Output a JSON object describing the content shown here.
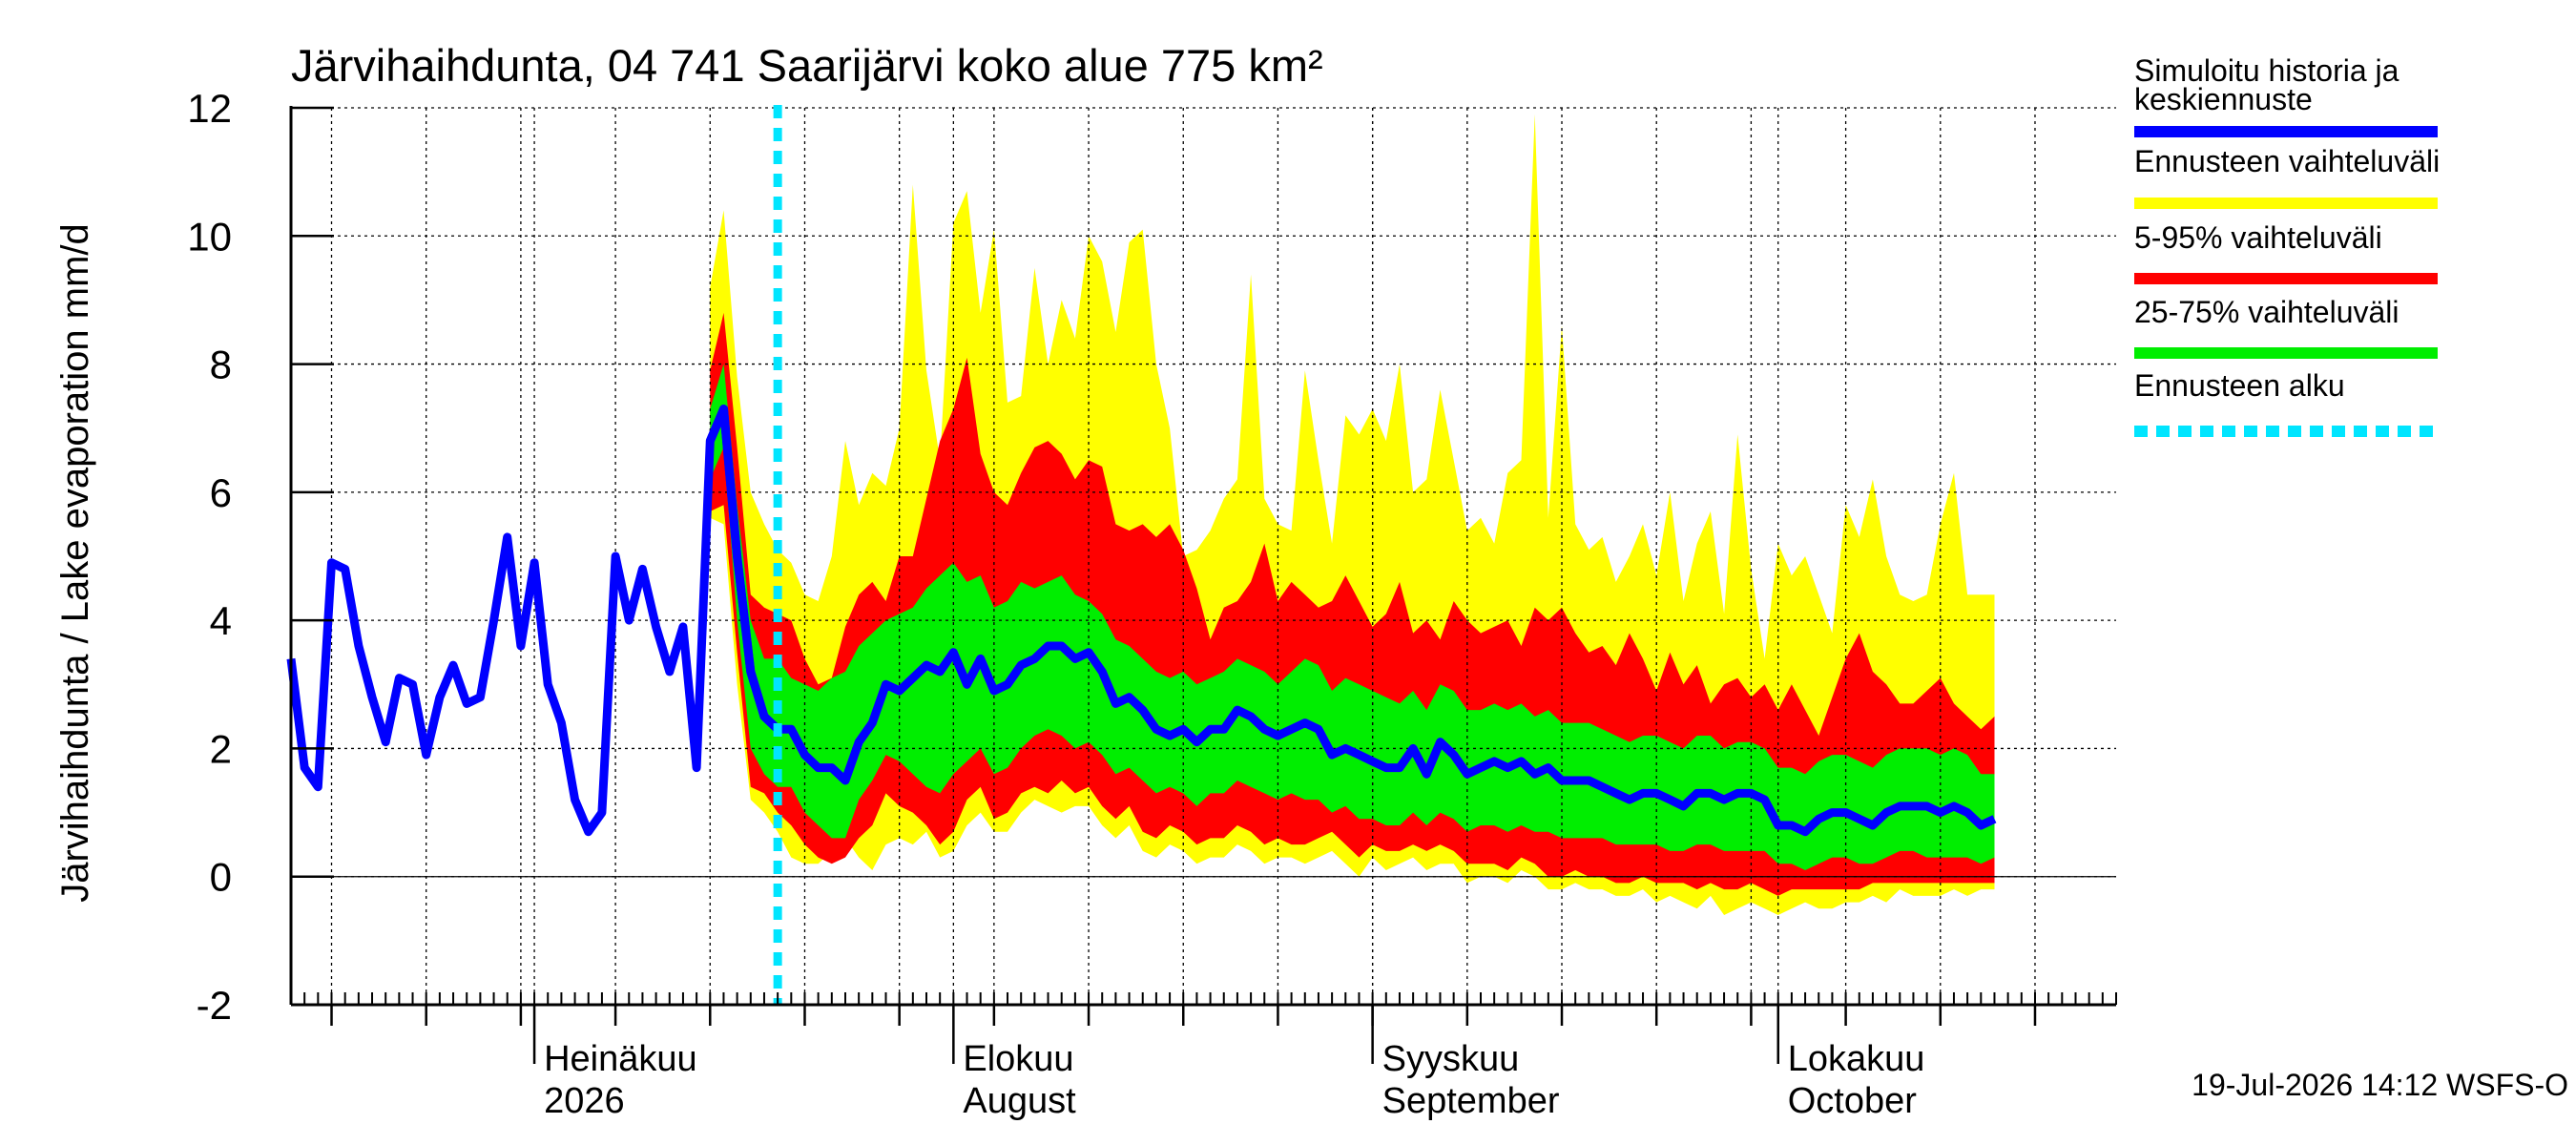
{
  "chart_data": {
    "type": "area",
    "title": "Järvihaihdunta, 04 741 Saarijärvi koko alue 775 km²",
    "ylabel": "Järvihaihdunta / Lake evaporation   mm/d",
    "ylim": [
      -2,
      12
    ],
    "yticks": [
      "-2",
      "0",
      "2",
      "4",
      "6",
      "8",
      "10",
      "12"
    ],
    "xlim": [
      "2026-06-13",
      "2026-10-26"
    ],
    "month_labels": [
      {
        "date": "2026-07-01",
        "line1": "Heinäkuu",
        "line2": "2026"
      },
      {
        "date": "2026-08-01",
        "line1": "Elokuu",
        "line2": "August"
      },
      {
        "date": "2026-09-01",
        "line1": "Syyskuu",
        "line2": "September"
      },
      {
        "date": "2026-10-01",
        "line1": "Lokakuu",
        "line2": "October"
      }
    ],
    "grid": true,
    "forecast_start": "2026-07-19",
    "legend": [
      {
        "label": "Simuloitu historia ja keskiennuste",
        "color": "#0000ff",
        "style": "solid"
      },
      {
        "label": "Ennusteen vaihteluväli",
        "color": "#ffff00",
        "style": "solid"
      },
      {
        "label": "5-95% vaihteluväli",
        "color": "#ff0000",
        "style": "solid"
      },
      {
        "label": "25-75% vaihteluväli",
        "color": "#00ee00",
        "style": "solid"
      },
      {
        "label": "Ennusteen alku",
        "color": "#00e5ff",
        "style": "dashed"
      }
    ],
    "footer": "19-Jul-2026 14:12 WSFS-O",
    "history": [
      [
        "2026-06-13",
        3.4
      ],
      [
        "2026-06-14",
        1.7
      ],
      [
        "2026-06-15",
        1.4
      ],
      [
        "2026-06-16",
        4.9
      ],
      [
        "2026-06-17",
        4.8
      ],
      [
        "2026-06-18",
        3.6
      ],
      [
        "2026-06-19",
        2.8
      ],
      [
        "2026-06-20",
        2.1
      ],
      [
        "2026-06-21",
        3.1
      ],
      [
        "2026-06-22",
        3.0
      ],
      [
        "2026-06-23",
        1.9
      ],
      [
        "2026-06-24",
        2.8
      ],
      [
        "2026-06-25",
        3.3
      ],
      [
        "2026-06-26",
        2.7
      ],
      [
        "2026-06-27",
        2.8
      ],
      [
        "2026-06-28",
        4.0
      ],
      [
        "2026-06-29",
        5.3
      ],
      [
        "2026-06-30",
        3.6
      ],
      [
        "2026-07-01",
        4.9
      ],
      [
        "2026-07-02",
        3.0
      ],
      [
        "2026-07-03",
        2.4
      ],
      [
        "2026-07-04",
        1.2
      ],
      [
        "2026-07-05",
        0.7
      ],
      [
        "2026-07-06",
        1.0
      ],
      [
        "2026-07-07",
        5.0
      ],
      [
        "2026-07-08",
        4.0
      ],
      [
        "2026-07-09",
        4.8
      ],
      [
        "2026-07-10",
        3.9
      ],
      [
        "2026-07-11",
        3.2
      ],
      [
        "2026-07-12",
        3.9
      ],
      [
        "2026-07-13",
        1.7
      ],
      [
        "2026-07-14",
        6.8
      ],
      [
        "2026-07-15",
        7.3
      ],
      [
        "2026-07-16",
        5.0
      ],
      [
        "2026-07-17",
        3.2
      ],
      [
        "2026-07-18",
        2.5
      ],
      [
        "2026-07-19",
        2.3
      ]
    ],
    "forecast": {
      "start": "2026-07-14",
      "median": [
        6.8,
        7.3,
        5.0,
        3.2,
        2.5,
        2.3,
        2.3,
        1.9,
        1.7,
        1.7,
        1.5,
        2.1,
        2.4,
        3.0,
        2.9,
        3.1,
        3.3,
        3.2,
        3.5,
        3.0,
        3.4,
        2.9,
        3.0,
        3.3,
        3.4,
        3.6,
        3.6,
        3.4,
        3.5,
        3.2,
        2.7,
        2.8,
        2.6,
        2.3,
        2.2,
        2.3,
        2.1,
        2.3,
        2.3,
        2.6,
        2.5,
        2.3,
        2.2,
        2.3,
        2.4,
        2.3,
        1.9,
        2.0,
        1.9,
        1.8,
        1.7,
        1.7,
        2.0,
        1.6,
        2.1,
        1.9,
        1.6,
        1.7,
        1.8,
        1.7,
        1.8,
        1.6,
        1.7,
        1.5,
        1.5,
        1.5,
        1.4,
        1.3,
        1.2,
        1.3,
        1.3,
        1.2,
        1.1,
        1.3,
        1.3,
        1.2,
        1.3,
        1.3,
        1.2,
        0.8,
        0.8,
        0.7,
        0.9,
        1.0,
        1.0,
        0.9,
        0.8,
        1.0,
        1.1,
        1.1,
        1.1,
        1.0,
        1.1,
        1.0,
        0.8,
        0.9
      ],
      "min": [
        5.6,
        5.5,
        3.0,
        1.2,
        1.0,
        0.7,
        0.3,
        0.2,
        0.2,
        0.4,
        0.6,
        0.3,
        0.1,
        0.5,
        0.6,
        0.5,
        0.7,
        0.3,
        0.4,
        0.8,
        1.0,
        0.7,
        0.7,
        1.0,
        1.2,
        1.1,
        1.0,
        1.1,
        1.1,
        0.8,
        0.6,
        0.8,
        0.4,
        0.3,
        0.5,
        0.4,
        0.2,
        0.3,
        0.3,
        0.5,
        0.4,
        0.2,
        0.3,
        0.3,
        0.2,
        0.3,
        0.4,
        0.2,
        0.0,
        0.3,
        0.1,
        0.2,
        0.3,
        0.1,
        0.2,
        0.2,
        -0.1,
        0.0,
        0.0,
        -0.1,
        0.1,
        0.0,
        -0.2,
        -0.2,
        -0.1,
        -0.2,
        -0.2,
        -0.3,
        -0.3,
        -0.2,
        -0.4,
        -0.3,
        -0.4,
        -0.5,
        -0.3,
        -0.6,
        -0.5,
        -0.4,
        -0.5,
        -0.6,
        -0.5,
        -0.4,
        -0.5,
        -0.5,
        -0.4,
        -0.4,
        -0.3,
        -0.4,
        -0.2,
        -0.3,
        -0.3,
        -0.3,
        -0.2,
        -0.3,
        -0.2,
        -0.2
      ],
      "q05": [
        5.7,
        5.8,
        3.5,
        1.4,
        1.3,
        1.0,
        0.8,
        0.5,
        0.3,
        0.2,
        0.3,
        0.6,
        0.8,
        1.3,
        1.1,
        1.0,
        0.8,
        0.5,
        0.7,
        1.2,
        1.4,
        0.9,
        1.0,
        1.3,
        1.4,
        1.3,
        1.5,
        1.3,
        1.4,
        1.1,
        0.9,
        1.1,
        0.7,
        0.6,
        0.8,
        0.7,
        0.5,
        0.6,
        0.6,
        0.8,
        0.7,
        0.5,
        0.6,
        0.5,
        0.5,
        0.6,
        0.7,
        0.5,
        0.3,
        0.5,
        0.4,
        0.4,
        0.5,
        0.4,
        0.5,
        0.4,
        0.2,
        0.2,
        0.2,
        0.1,
        0.3,
        0.2,
        0.0,
        0.0,
        0.1,
        0.0,
        0.0,
        -0.1,
        -0.1,
        0.0,
        -0.1,
        -0.1,
        -0.1,
        -0.2,
        -0.1,
        -0.2,
        -0.2,
        -0.1,
        -0.2,
        -0.3,
        -0.2,
        -0.2,
        -0.2,
        -0.2,
        -0.2,
        -0.2,
        -0.1,
        -0.1,
        -0.1,
        -0.1,
        -0.1,
        -0.1,
        -0.1,
        -0.1,
        -0.1,
        -0.1
      ],
      "q25": [
        6.2,
        6.7,
        4.0,
        2.0,
        1.6,
        1.4,
        1.4,
        1.0,
        0.8,
        0.6,
        0.6,
        1.2,
        1.5,
        1.9,
        1.8,
        1.6,
        1.4,
        1.3,
        1.6,
        1.8,
        2.0,
        1.6,
        1.7,
        2.0,
        2.2,
        2.3,
        2.2,
        2.0,
        2.1,
        1.9,
        1.6,
        1.7,
        1.5,
        1.3,
        1.4,
        1.3,
        1.1,
        1.3,
        1.3,
        1.5,
        1.4,
        1.3,
        1.2,
        1.3,
        1.2,
        1.2,
        1.0,
        1.1,
        0.9,
        0.9,
        0.8,
        0.8,
        1.0,
        0.8,
        1.0,
        0.9,
        0.7,
        0.8,
        0.8,
        0.7,
        0.8,
        0.7,
        0.7,
        0.6,
        0.6,
        0.6,
        0.6,
        0.5,
        0.5,
        0.5,
        0.5,
        0.4,
        0.4,
        0.5,
        0.5,
        0.4,
        0.4,
        0.4,
        0.4,
        0.2,
        0.2,
        0.1,
        0.2,
        0.3,
        0.3,
        0.2,
        0.2,
        0.3,
        0.4,
        0.4,
        0.3,
        0.3,
        0.3,
        0.3,
        0.2,
        0.3
      ],
      "q75": [
        7.3,
        8.0,
        5.8,
        4.0,
        3.4,
        3.4,
        3.1,
        3.0,
        2.9,
        3.1,
        3.2,
        3.6,
        3.8,
        4.0,
        4.1,
        4.2,
        4.5,
        4.7,
        4.9,
        4.6,
        4.7,
        4.2,
        4.3,
        4.6,
        4.5,
        4.6,
        4.7,
        4.4,
        4.3,
        4.1,
        3.7,
        3.6,
        3.4,
        3.2,
        3.1,
        3.2,
        3.0,
        3.1,
        3.2,
        3.4,
        3.3,
        3.2,
        3.0,
        3.2,
        3.4,
        3.3,
        2.9,
        3.1,
        3.0,
        2.9,
        2.8,
        2.7,
        2.9,
        2.6,
        3.0,
        2.9,
        2.6,
        2.6,
        2.7,
        2.6,
        2.7,
        2.5,
        2.6,
        2.4,
        2.4,
        2.4,
        2.3,
        2.2,
        2.1,
        2.2,
        2.2,
        2.1,
        2.0,
        2.2,
        2.2,
        2.0,
        2.1,
        2.1,
        2.0,
        1.7,
        1.7,
        1.6,
        1.8,
        1.9,
        1.9,
        1.8,
        1.7,
        1.9,
        2.0,
        2.0,
        2.0,
        1.9,
        2.0,
        1.9,
        1.6,
        1.6
      ],
      "q95": [
        7.9,
        8.8,
        6.7,
        4.4,
        4.2,
        4.1,
        4.0,
        3.4,
        3.0,
        3.1,
        3.9,
        4.4,
        4.6,
        4.3,
        5.0,
        5.0,
        5.9,
        6.8,
        7.3,
        8.1,
        6.6,
        6.0,
        5.8,
        6.3,
        6.7,
        6.8,
        6.6,
        6.2,
        6.5,
        6.4,
        5.5,
        5.4,
        5.5,
        5.3,
        5.5,
        5.1,
        4.5,
        3.7,
        4.2,
        4.3,
        4.6,
        5.2,
        4.3,
        4.6,
        4.4,
        4.2,
        4.3,
        4.7,
        4.3,
        3.9,
        4.1,
        4.6,
        3.8,
        4.0,
        3.7,
        4.3,
        4.0,
        3.8,
        3.9,
        4.0,
        3.6,
        4.2,
        4.0,
        4.2,
        3.8,
        3.5,
        3.6,
        3.3,
        3.8,
        3.4,
        2.9,
        3.5,
        3.0,
        3.3,
        2.7,
        3.0,
        3.1,
        2.8,
        3.0,
        2.6,
        3.0,
        2.6,
        2.2,
        2.8,
        3.4,
        3.8,
        3.2,
        3.0,
        2.7,
        2.7,
        2.9,
        3.1,
        2.7,
        2.5,
        2.3,
        2.5
      ],
      "max": [
        9.2,
        10.4,
        7.8,
        6.0,
        5.5,
        5.1,
        4.9,
        4.4,
        4.3,
        5.0,
        6.8,
        5.8,
        6.3,
        6.1,
        7.0,
        10.8,
        7.9,
        6.5,
        10.2,
        10.7,
        8.8,
        10.1,
        7.4,
        7.5,
        9.5,
        8.0,
        9.0,
        8.4,
        10.0,
        9.6,
        8.5,
        9.9,
        10.1,
        8.0,
        7.0,
        5.0,
        5.1,
        5.4,
        5.9,
        6.2,
        9.4,
        5.9,
        5.5,
        5.4,
        7.9,
        6.5,
        5.2,
        7.2,
        6.9,
        7.3,
        6.8,
        8.0,
        6.0,
        6.2,
        7.6,
        6.5,
        5.4,
        5.6,
        5.2,
        6.3,
        6.5,
        11.9,
        5.6,
        8.6,
        5.5,
        5.1,
        5.3,
        4.6,
        5.0,
        5.5,
        4.7,
        6.0,
        4.3,
        5.2,
        5.7,
        4.1,
        6.9,
        4.8,
        3.4,
        5.2,
        4.7,
        5.0,
        4.4,
        3.8,
        5.8,
        5.3,
        6.2,
        5.0,
        4.4,
        4.3,
        4.4,
        5.5,
        6.3,
        4.4,
        4.4,
        4.4
      ]
    }
  }
}
